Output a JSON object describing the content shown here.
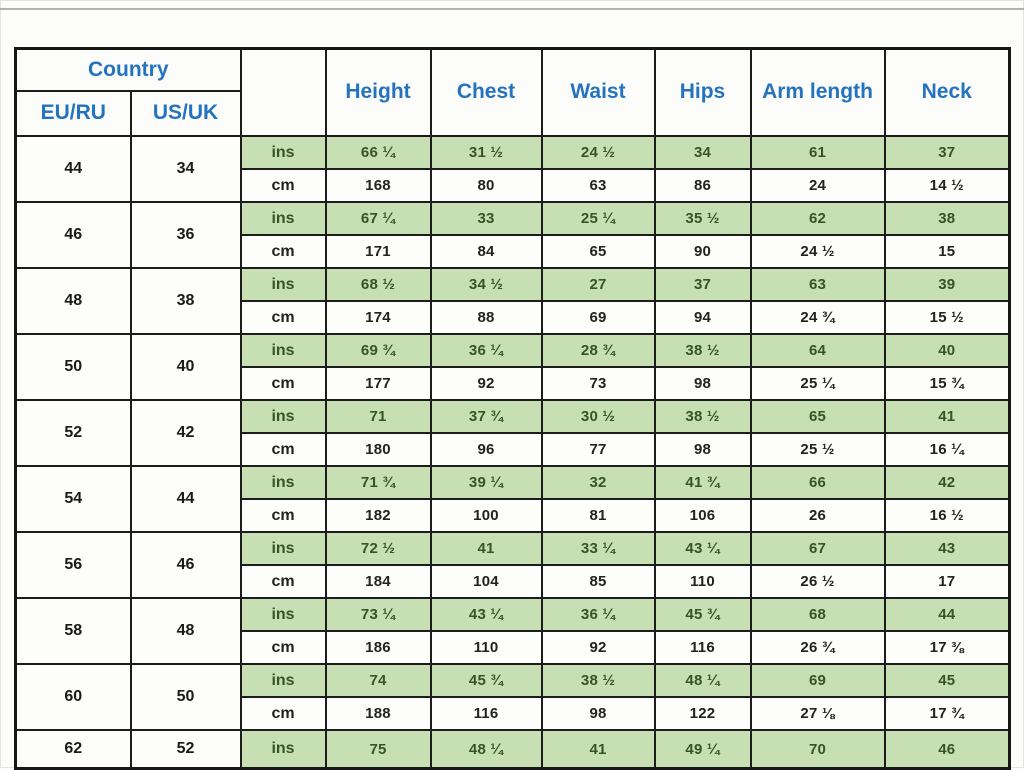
{
  "colors": {
    "header_text": "#2473be",
    "ins_row_background": "#c6e0b4",
    "ins_row_text": "#365426",
    "cm_row_text": "#222222",
    "border": "#1c1c1c"
  },
  "chart_data": {
    "type": "table",
    "header": {
      "country": "Country",
      "country_sub": [
        "EU/RU",
        "US/UK"
      ],
      "measurements": [
        "Height",
        "Chest",
        "Waist",
        "Hips",
        "Arm length",
        "Neck"
      ]
    },
    "unit_rows": [
      "ins",
      "cm"
    ],
    "rows": [
      {
        "eu_ru": "44",
        "us_uk": "34",
        "ins": [
          "66 ¼",
          "31 ½",
          "24 ½",
          "34",
          "61",
          "37"
        ],
        "cm": [
          "168",
          "80",
          "63",
          "86",
          "24",
          "14 ½"
        ]
      },
      {
        "eu_ru": "46",
        "us_uk": "36",
        "ins": [
          "67 ¼",
          "33",
          "25 ¼",
          "35 ½",
          "62",
          "38"
        ],
        "cm": [
          "171",
          "84",
          "65",
          "90",
          "24 ½",
          "15"
        ]
      },
      {
        "eu_ru": "48",
        "us_uk": "38",
        "ins": [
          "68 ½",
          "34 ½",
          "27",
          "37",
          "63",
          "39"
        ],
        "cm": [
          "174",
          "88",
          "69",
          "94",
          "24 ¾",
          "15 ½"
        ]
      },
      {
        "eu_ru": "50",
        "us_uk": "40",
        "ins": [
          "69 ¾",
          "36 ¼",
          "28 ¾",
          "38 ½",
          "64",
          "40"
        ],
        "cm": [
          "177",
          "92",
          "73",
          "98",
          "25 ¼",
          "15 ¾"
        ]
      },
      {
        "eu_ru": "52",
        "us_uk": "42",
        "ins": [
          "71",
          "37 ¾",
          "30 ½",
          "38 ½",
          "65",
          "41"
        ],
        "cm": [
          "180",
          "96",
          "77",
          "98",
          "25 ½",
          "16 ¼"
        ]
      },
      {
        "eu_ru": "54",
        "us_uk": "44",
        "ins": [
          "71 ¾",
          "39 ¼",
          "32",
          "41 ¾",
          "66",
          "42"
        ],
        "cm": [
          "182",
          "100",
          "81",
          "106",
          "26",
          "16 ½"
        ]
      },
      {
        "eu_ru": "56",
        "us_uk": "46",
        "ins": [
          "72 ½",
          "41",
          "33 ¼",
          "43 ¼",
          "67",
          "43"
        ],
        "cm": [
          "184",
          "104",
          "85",
          "110",
          "26 ½",
          "17"
        ]
      },
      {
        "eu_ru": "58",
        "us_uk": "48",
        "ins": [
          "73 ¼",
          "43 ¼",
          "36 ¼",
          "45 ¾",
          "68",
          "44"
        ],
        "cm": [
          "186",
          "110",
          "92",
          "116",
          "26 ¾",
          "17 ⅜"
        ]
      },
      {
        "eu_ru": "60",
        "us_uk": "50",
        "ins": [
          "74",
          "45 ¾",
          "38 ½",
          "48 ¼",
          "69",
          "45"
        ],
        "cm": [
          "188",
          "116",
          "98",
          "122",
          "27 ⅛",
          "17 ¾"
        ]
      },
      {
        "eu_ru": "62",
        "us_uk": "52",
        "ins": [
          "75",
          "48 ¼",
          "41",
          "49 ¼",
          "70",
          "46"
        ],
        "cm": null
      }
    ]
  }
}
